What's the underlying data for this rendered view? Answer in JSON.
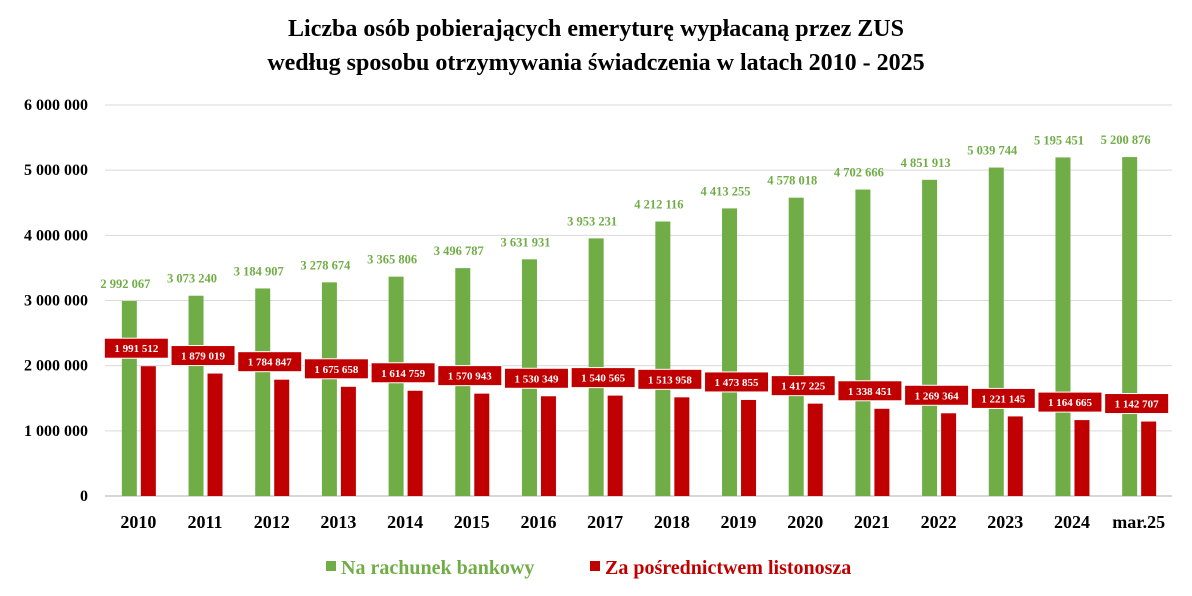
{
  "chart_data": {
    "type": "bar",
    "title_lines": [
      "Liczba osób pobierających emeryturę wypłacaną przez ZUS",
      "według sposobu otrzymywania świadczenia w latach 2010 - 2025"
    ],
    "categories": [
      "2010",
      "2011",
      "2012",
      "2013",
      "2014",
      "2015",
      "2016",
      "2017",
      "2018",
      "2019",
      "2020",
      "2021",
      "2022",
      "2023",
      "2024",
      "mar.25"
    ],
    "series": [
      {
        "name": "Na rachunek bankowy",
        "color": "#70AD47",
        "values": [
          2992067,
          3073240,
          3184907,
          3278674,
          3365806,
          3496787,
          3631931,
          3953231,
          4212116,
          4413255,
          4578018,
          4702666,
          4851913,
          5039744,
          5195451,
          5200876
        ],
        "labels": [
          "2 992 067",
          "3 073 240",
          "3 184 907",
          "3 278 674",
          "3 365 806",
          "3 496 787",
          "3 631 931",
          "3 953 231",
          "4 212 116",
          "4 413 255",
          "4 578 018",
          "4 702 666",
          "4 851 913",
          "5 039 744",
          "5 195 451",
          "5 200 876"
        ]
      },
      {
        "name": "Za pośrednictwem listonosza",
        "color": "#C00000",
        "values": [
          1991512,
          1879019,
          1784847,
          1675658,
          1614759,
          1570943,
          1530349,
          1540565,
          1513958,
          1473855,
          1417225,
          1338451,
          1269364,
          1221145,
          1164665,
          1142707
        ],
        "labels": [
          "1 991 512",
          "1 879 019",
          "1 784 847",
          "1 675 658",
          "1 614 759",
          "1 570 943",
          "1 530 349",
          "1 540 565",
          "1 513 958",
          "1 473 855",
          "1 417 225",
          "1 338 451",
          "1 269 364",
          "1 221 145",
          "1 164 665",
          "1 142 707"
        ]
      }
    ],
    "ylim": [
      0,
      6000000
    ],
    "yticks": [
      0,
      1000000,
      2000000,
      3000000,
      4000000,
      5000000,
      6000000
    ],
    "ytick_labels": [
      "0",
      "1 000 000",
      "2 000 000",
      "3 000 000",
      "4 000 000",
      "5 000 000",
      "6 000 000"
    ],
    "grid": true,
    "gridline_color": "#D9D9D9",
    "legend_position": "bottom"
  }
}
